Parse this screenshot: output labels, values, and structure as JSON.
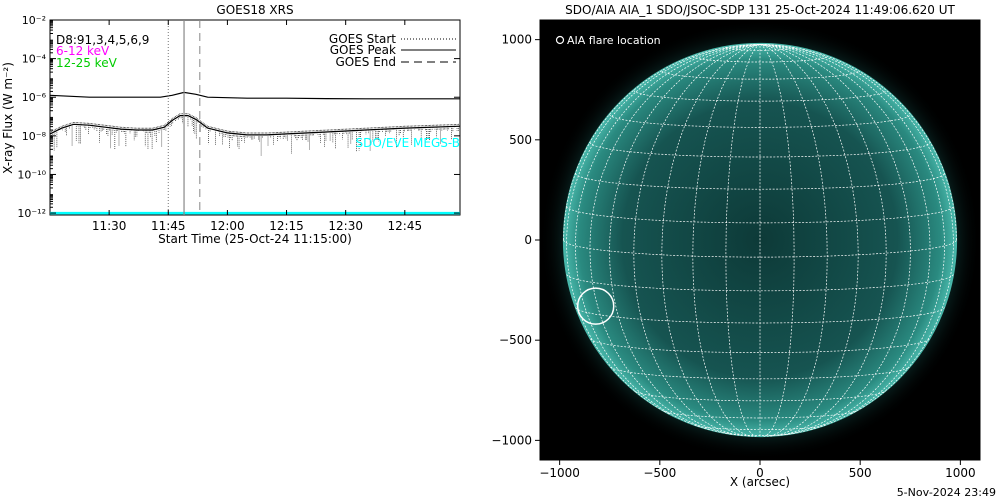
{
  "footer": {
    "timestamp": "5-Nov-2024 23:49"
  },
  "chart_data": [
    {
      "type": "line",
      "title": "GOES18 XRS",
      "xlabel": "Start Time (25-Oct-24 11:15:00)",
      "ylabel": "X-ray Flux (W m⁻²)",
      "x_ticks": [
        "11:30",
        "11:45",
        "12:00",
        "12:15",
        "12:30",
        "12:45"
      ],
      "x_tick_minutes": [
        15,
        30,
        45,
        60,
        75,
        90
      ],
      "xlim_minutes": [
        0,
        104
      ],
      "y_scale": "log",
      "y_tick_labels": [
        "10⁻¹²",
        "10⁻¹⁰",
        "10⁻⁸",
        "10⁻⁶",
        "10⁻⁴",
        "10⁻²"
      ],
      "y_tick_exponents": [
        -12,
        -10,
        -8,
        -6,
        -4,
        -2
      ],
      "ylim_log10": [
        -12.1,
        -2
      ],
      "channel_labels": [
        {
          "text": "D8:91,3,4,5,6,9",
          "color": "#000000"
        },
        {
          "text": "6-12 keV",
          "color": "#ff00ff"
        },
        {
          "text": "12-25 keV",
          "color": "#00cc00"
        }
      ],
      "annotation": {
        "text": "SDO/EVE MEGS-B",
        "color": "#00ffff"
      },
      "legend": {
        "placement": "top-right",
        "entries": [
          {
            "label": "GOES Start",
            "style": "dotted"
          },
          {
            "label": "GOES Peak",
            "style": "solid"
          },
          {
            "label": "GOES End",
            "style": "dashed"
          }
        ]
      },
      "event_lines_minutes": {
        "start": 30,
        "peak": 34,
        "end": 38
      },
      "series": [
        {
          "color": "#000000",
          "x_minutes": [
            0,
            10,
            20,
            28,
            31,
            34,
            37,
            40,
            50,
            60,
            70,
            80,
            90,
            104
          ],
          "log10_flux": [
            -5.9,
            -6.0,
            -6.0,
            -6.0,
            -5.9,
            -5.75,
            -5.85,
            -6.0,
            -6.05,
            -6.05,
            -6.07,
            -6.08,
            -6.08,
            -6.08
          ]
        },
        {
          "color": "#000000",
          "x_minutes": [
            0,
            3,
            6,
            10,
            14,
            18,
            22,
            26,
            29,
            31,
            33,
            35,
            37,
            40,
            45,
            50,
            55,
            60,
            70,
            80,
            90,
            104
          ],
          "log10_flux": [
            -7.9,
            -7.6,
            -7.4,
            -7.45,
            -7.55,
            -7.65,
            -7.7,
            -7.7,
            -7.55,
            -7.2,
            -6.95,
            -6.95,
            -7.15,
            -7.6,
            -7.85,
            -7.95,
            -7.95,
            -7.9,
            -7.8,
            -7.7,
            -7.6,
            -7.5
          ]
        },
        {
          "color": "#00ffff",
          "x_minutes": [
            0,
            104
          ],
          "log10_flux": [
            -12,
            -12
          ]
        }
      ]
    },
    {
      "type": "scatter",
      "title": "SDO/AIA AIA_1 SDO/JSOC-SDP 131 25-Oct-2024 11:49:06.620 UT",
      "xlabel": "X (arcsec)",
      "ylabel": "",
      "x_ticks": [
        -1000,
        -500,
        0,
        500,
        1000
      ],
      "y_ticks": [
        -1000,
        -500,
        0,
        500,
        1000
      ],
      "xlim": [
        -1098,
        1098
      ],
      "ylim": [
        -1098,
        1098
      ],
      "legend": {
        "placement": "top-left",
        "label": "AIA flare location",
        "marker": "circle"
      },
      "solar_radius_arcsec": 980,
      "grid_spacing_deg": 10,
      "flare_location": {
        "x": -820,
        "y": -330,
        "radius_arcsec": 90
      },
      "colors": {
        "background": "#000000",
        "disk": "#1a5a55",
        "limb": "#49b8ab",
        "grid": "#ffffff"
      }
    }
  ]
}
